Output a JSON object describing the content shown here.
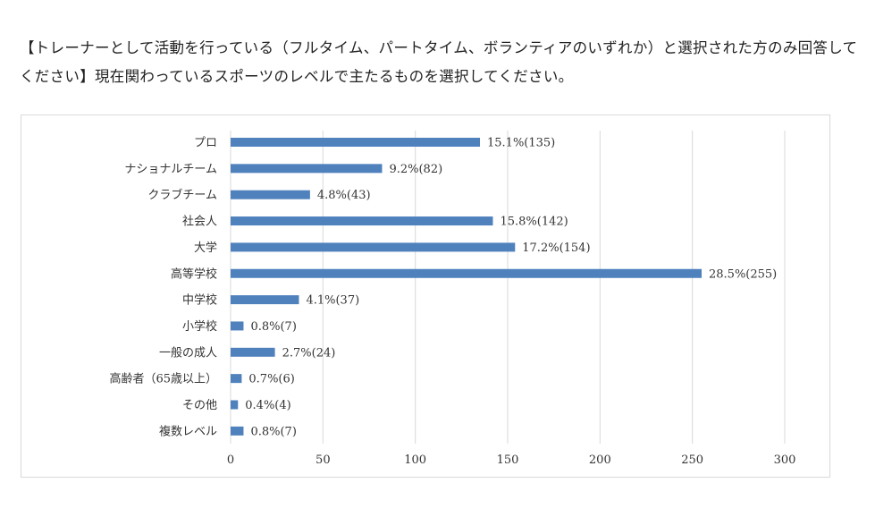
{
  "question": "【トレーナーとして活動を行っている（フルタイム、パートタイム、ボランティアのいずれか）と選択された方のみ回答してください】現在関わっているスポーツのレベルで主たるものを選択してください。",
  "chart_data": {
    "type": "bar",
    "orientation": "horizontal",
    "categories": [
      "プロ",
      "ナショナルチーム",
      "クラブチーム",
      "社会人",
      "大学",
      "高等学校",
      "中学校",
      "小学校",
      "一般の成人",
      "高齢者（65歳以上）",
      "その他",
      "複数レベル"
    ],
    "values": [
      135,
      82,
      43,
      142,
      154,
      255,
      37,
      7,
      24,
      6,
      4,
      7
    ],
    "data_labels": [
      "15.1%(135)",
      "9.2%(82)",
      "4.8%(43)",
      "15.8%(142)",
      "17.2%(154)",
      "28.5%(255)",
      "4.1%(37)",
      "0.8%(7)",
      "2.7%(24)",
      "0.7%(6)",
      "0.4%(4)",
      "0.8%(7)"
    ],
    "xlim": [
      0,
      300
    ],
    "xticks": [
      0,
      50,
      100,
      150,
      200,
      250,
      300
    ],
    "grid": true,
    "bar_color": "#4f81bd",
    "grid_color": "#d9d9d9"
  }
}
